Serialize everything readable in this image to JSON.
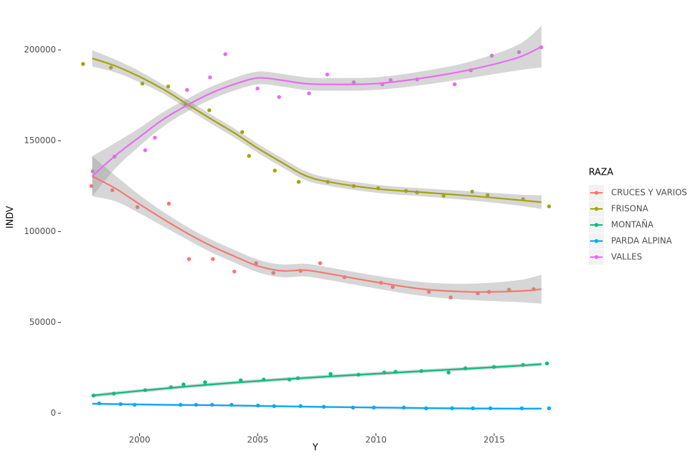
{
  "chart_data": {
    "type": "scatter_smooth",
    "x_label": "Y",
    "y_label": "INDV",
    "legend_title": "RAZA",
    "legend_position": "right",
    "xlim": [
      1996.7,
      2018.2
    ],
    "ylim": [
      -11000,
      216000
    ],
    "xticks": [
      2000,
      2005,
      2010,
      2015
    ],
    "yticks": [
      0,
      50000,
      100000,
      150000,
      200000
    ],
    "grid": false,
    "band_color": "#999999",
    "smooth_x": [
      1998,
      1999,
      2000,
      2001,
      2002,
      2003,
      2004,
      2005,
      2006,
      2007,
      2008,
      2010,
      2012,
      2014,
      2016,
      2017
    ],
    "series": [
      {
        "name": "CRUCES Y VARIOS",
        "color": "#F8766D",
        "x": [
          1997.96,
          1998.85,
          1999.91,
          2001.24,
          2002.09,
          2003.1,
          2004.01,
          2004.93,
          2005.66,
          2006.81,
          2007.64,
          2008.67,
          2010.21,
          2010.71,
          2012.24,
          2013.16,
          2014.31,
          2014.78,
          2015.63,
          2016.67
        ],
        "values": [
          125100,
          122800,
          113500,
          115400,
          84900,
          84900,
          78000,
          82600,
          77200,
          78400,
          82600,
          74900,
          71800,
          69500,
          66800,
          63700,
          66000,
          66800,
          68000,
          68300
        ],
        "smooth": {
          "fit": [
            130500,
            123600,
            115100,
            106900,
            99200,
            92300,
            86500,
            81100,
            78400,
            78800,
            76800,
            72200,
            68300,
            66800,
            67200,
            68300
          ],
          "lower": [
            119500,
            116600,
            110100,
            102900,
            95700,
            88800,
            83000,
            77600,
            74900,
            75300,
            73300,
            68700,
            64500,
            62300,
            61200,
            60300
          ],
          "upper": [
            141500,
            130600,
            120100,
            110900,
            102700,
            95800,
            90000,
            84600,
            81900,
            82300,
            80300,
            75700,
            72100,
            71300,
            73200,
            76300
          ]
        }
      },
      {
        "name": "FRISONA",
        "color": "#A3A500",
        "x": [
          1997.61,
          1998.79,
          2000.12,
          2001.21,
          2001.95,
          2002.95,
          2004.34,
          2004.63,
          2005.72,
          2006.73,
          2007.96,
          2009.06,
          2010.09,
          2011.27,
          2011.74,
          2012.86,
          2014.07,
          2014.72,
          2016.22,
          2017.32
        ],
        "values": [
          192300,
          190300,
          181500,
          179900,
          169900,
          166800,
          154800,
          141700,
          133600,
          127400,
          127400,
          125100,
          123900,
          122400,
          121600,
          119700,
          122000,
          120100,
          117800,
          113900
        ],
        "smooth": {
          "fit": [
            195400,
            191100,
            185300,
            178400,
            170300,
            162200,
            154400,
            145900,
            138200,
            130900,
            127400,
            123600,
            121600,
            119700,
            117400,
            116200
          ],
          "lower": [
            190900,
            187600,
            182300,
            175900,
            167800,
            159700,
            151900,
            143400,
            135700,
            128400,
            125200,
            121400,
            119400,
            117200,
            114400,
            112400
          ],
          "upper": [
            199900,
            194600,
            188300,
            180900,
            172800,
            164700,
            156900,
            148400,
            140700,
            133400,
            129600,
            125800,
            123800,
            122200,
            120400,
            120000
          ]
        }
      },
      {
        "name": "MONTAÑA",
        "color": "#00BF7D",
        "x": [
          1998.05,
          1998.91,
          2000.24,
          2001.33,
          2001.86,
          2002.77,
          2004.28,
          2005.25,
          2006.34,
          2006.7,
          2008.08,
          2009.26,
          2010.35,
          2010.83,
          2011.92,
          2013.07,
          2013.78,
          2014.99,
          2016.22,
          2017.23
        ],
        "values": [
          9700,
          10800,
          12700,
          14300,
          15800,
          17000,
          18100,
          18500,
          18500,
          19300,
          21600,
          21200,
          22400,
          22800,
          23200,
          22400,
          24700,
          25500,
          26600,
          27400
        ],
        "smooth": {
          "fit": [
            9700,
            11000,
            12300,
            13500,
            14700,
            15800,
            16800,
            17700,
            18600,
            19400,
            20200,
            21700,
            23200,
            24600,
            26100,
            27000
          ],
          "lower": [
            8700,
            10000,
            11300,
            12500,
            13700,
            14800,
            15800,
            16700,
            17600,
            18400,
            19200,
            20700,
            22200,
            23600,
            25100,
            26000
          ],
          "upper": [
            10700,
            12000,
            13300,
            14500,
            15700,
            16800,
            17800,
            18700,
            19600,
            20400,
            21200,
            22700,
            24200,
            25600,
            27100,
            28000
          ]
        }
      },
      {
        "name": "PARDA ALPINA",
        "color": "#00A9FF",
        "x": [
          1998.29,
          1999.2,
          1999.79,
          2001.74,
          2002.39,
          2003.07,
          2003.89,
          2005.01,
          2005.69,
          2006.81,
          2007.79,
          2009.03,
          2009.91,
          2011.18,
          2012.12,
          2013.22,
          2014.1,
          2014.84,
          2016.17,
          2017.32
        ],
        "values": [
          5400,
          5000,
          4600,
          4600,
          4600,
          4600,
          4600,
          4200,
          3900,
          3900,
          3500,
          3100,
          3100,
          3100,
          2700,
          2700,
          2700,
          2700,
          2700,
          2700
        ],
        "smooth": {
          "fit": [
            5200,
            5000,
            4800,
            4600,
            4500,
            4400,
            4200,
            4000,
            3800,
            3600,
            3400,
            3100,
            2800,
            2600,
            2500,
            2500
          ],
          "lower": [
            4600,
            4400,
            4200,
            4000,
            3900,
            3800,
            3600,
            3400,
            3200,
            3000,
            2800,
            2500,
            2200,
            2000,
            1900,
            1900
          ],
          "upper": [
            5800,
            5600,
            5400,
            5200,
            5100,
            5000,
            4800,
            4600,
            4400,
            4200,
            4000,
            3700,
            3400,
            3200,
            3100,
            3100
          ]
        }
      },
      {
        "name": "VALLES",
        "color": "#E76BF3",
        "x": [
          1998.02,
          1998.94,
          2000.24,
          2000.65,
          2002.01,
          2002.98,
          2003.63,
          2004.99,
          2005.9,
          2007.17,
          2007.94,
          2009.06,
          2010.27,
          2010.62,
          2011.74,
          2013.33,
          2014.01,
          2014.9,
          2016.05,
          2016.99
        ],
        "values": [
          133200,
          141300,
          144800,
          151700,
          178000,
          184900,
          197700,
          178800,
          174100,
          176100,
          186500,
          182200,
          181100,
          183400,
          183800,
          181100,
          188800,
          196900,
          198800,
          201500
        ],
        "smooth": {
          "fit": [
            130500,
            142100,
            152100,
            161800,
            169500,
            176100,
            181100,
            184600,
            183400,
            181500,
            181100,
            181500,
            184600,
            189200,
            195800,
            201900
          ],
          "lower": [
            119500,
            135100,
            147100,
            157800,
            166000,
            172600,
            177600,
            181100,
            179900,
            178000,
            177600,
            178000,
            180800,
            184700,
            188800,
            190400
          ],
          "upper": [
            141500,
            149100,
            157100,
            165800,
            173000,
            179600,
            184600,
            188100,
            186900,
            185000,
            184600,
            185000,
            188400,
            193700,
            202800,
            213400
          ]
        }
      }
    ]
  }
}
